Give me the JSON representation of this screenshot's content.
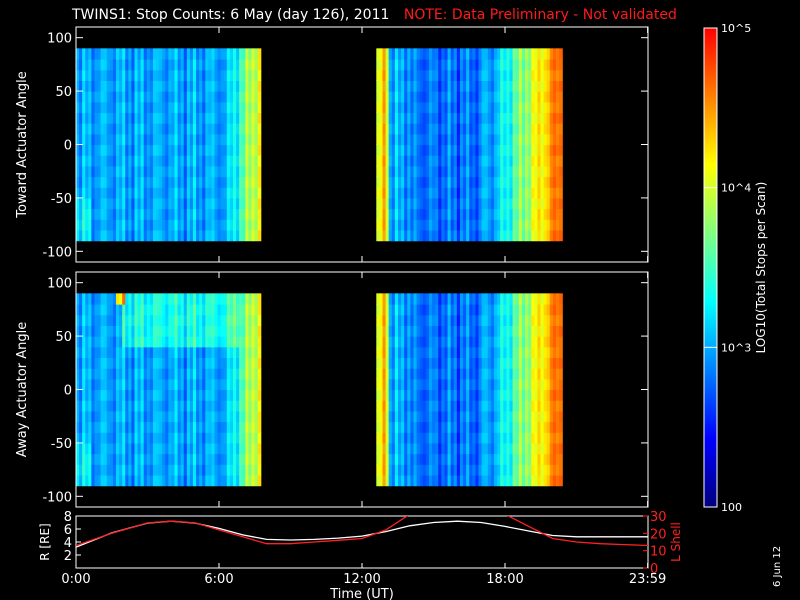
{
  "title": {
    "main": "TWINS1: Stop Counts:  6 May (day 126), 2011",
    "note": "NOTE: Data Preliminary - Not validated",
    "note_color": "#ff1a1a"
  },
  "datestamp": "6 Jun 12",
  "chart_data": [
    {
      "type": "heatmap",
      "panel": "toward",
      "ylabel": "Toward Actuator Angle",
      "ylim": [
        -110,
        110
      ],
      "yticks": [
        -100,
        -50,
        0,
        50,
        100
      ],
      "xlim": [
        0,
        24
      ],
      "coverage_hours": [
        [
          0,
          7.75
        ],
        [
          12.6,
          20.4
        ]
      ],
      "y_extent": [
        -90,
        90
      ]
    },
    {
      "type": "heatmap",
      "panel": "away",
      "ylabel": "Away Actuator Angle",
      "ylim": [
        -110,
        110
      ],
      "yticks": [
        -100,
        -50,
        0,
        50,
        100
      ],
      "xlim": [
        0,
        24
      ],
      "coverage_hours": [
        [
          0,
          7.75
        ],
        [
          12.6,
          20.4
        ]
      ],
      "y_extent": [
        -90,
        90
      ]
    },
    {
      "type": "line",
      "panel": "orbit",
      "ylabel_left": "R [RE]",
      "ylabel_right": "L Shell",
      "ylim_left": [
        0,
        8
      ],
      "yticks_left": [
        2,
        4,
        6,
        8
      ],
      "ylim_right": [
        0,
        30
      ],
      "yticks_right": [
        0,
        10,
        20,
        30
      ],
      "x": [
        0,
        1.5,
        3,
        4,
        5,
        6,
        7,
        8,
        9,
        10,
        11,
        12,
        13,
        14,
        15,
        16,
        17,
        18,
        19,
        20,
        21,
        22,
        23,
        24
      ],
      "series": [
        {
          "name": "R",
          "color": "#ffffff",
          "axis": "left",
          "values": [
            3.2,
            5.4,
            6.9,
            7.2,
            6.9,
            6.1,
            5.1,
            4.4,
            4.3,
            4.4,
            4.6,
            4.9,
            5.6,
            6.5,
            7.0,
            7.2,
            7.0,
            6.4,
            5.7,
            5.0,
            4.8,
            4.8,
            4.8,
            4.8
          ]
        },
        {
          "name": "L Shell",
          "color": "#ff2020",
          "axis": "right",
          "values": [
            13,
            20,
            26,
            27,
            26,
            22,
            18,
            14,
            14,
            15,
            16,
            17,
            22,
            31,
            null,
            null,
            null,
            31,
            24,
            17,
            15,
            14,
            13.5,
            13
          ]
        }
      ]
    }
  ],
  "xaxis": {
    "ticks": [
      0,
      6,
      12,
      18,
      23.983
    ],
    "tick_labels": [
      "0:00",
      "6:00",
      "12:00",
      "18:00",
      "23:59"
    ],
    "label": "Time (UT)"
  },
  "colorbar": {
    "label": "LOG10(Total Stops per Scan)",
    "ticks": [
      100,
      1000,
      10000,
      100000
    ],
    "tick_labels": [
      "100",
      "10^3",
      "10^4",
      "10^5"
    ],
    "range": [
      100,
      100000
    ],
    "colors": [
      "#000080",
      "#0000ff",
      "#0080ff",
      "#00ffff",
      "#80ff80",
      "#ffff00",
      "#ff8000",
      "#ff0000"
    ]
  }
}
